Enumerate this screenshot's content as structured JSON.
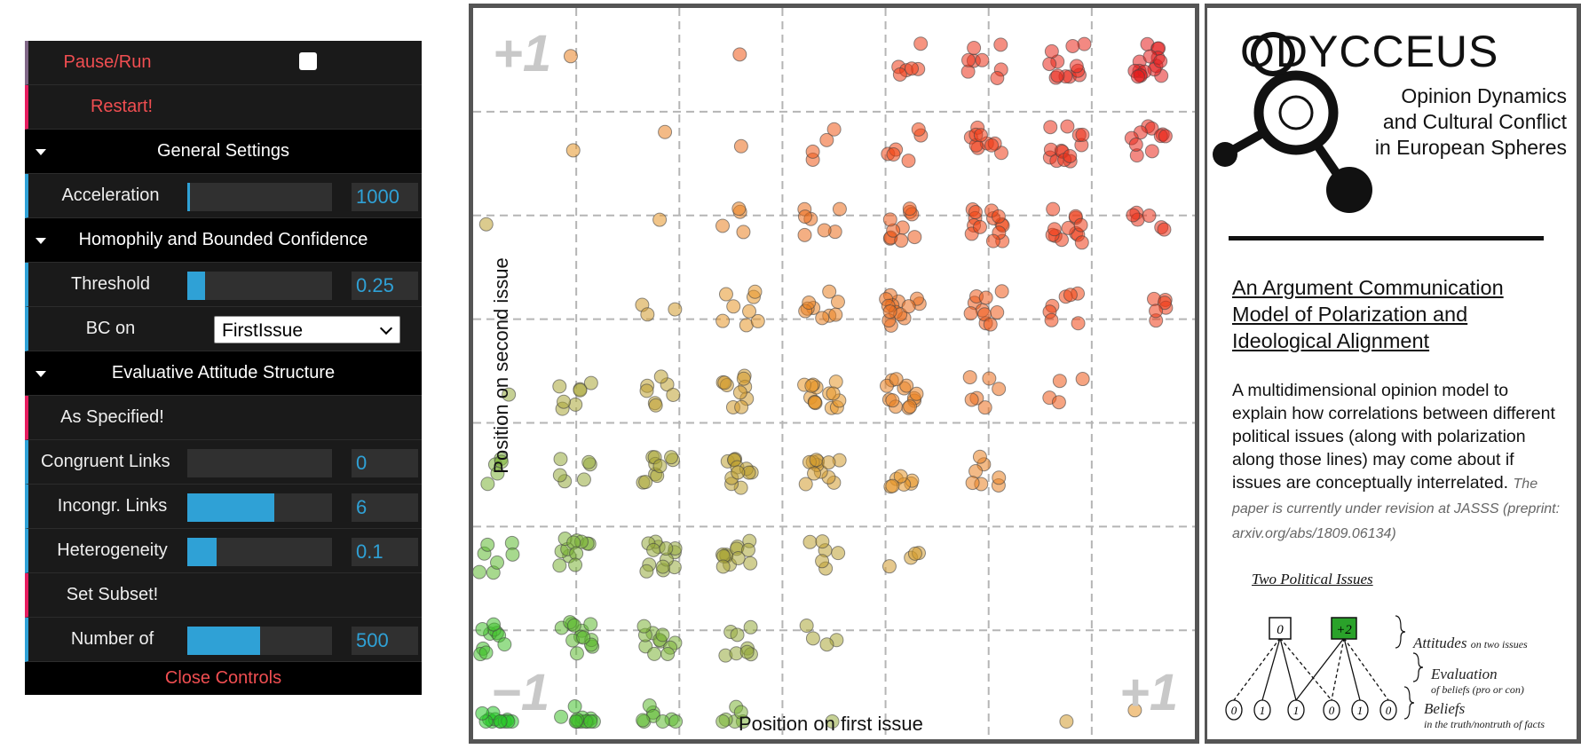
{
  "controls": {
    "pause_run": "Pause/Run",
    "restart": "Restart!",
    "general_settings": "General Settings",
    "acceleration": {
      "label": "Acceleration",
      "value": "1000",
      "fill_fraction": 0.01
    },
    "homophily": "Homophily and Bounded Confidence",
    "threshold": {
      "label": "Threshold",
      "value": "0.25",
      "fill_fraction": 0.12
    },
    "bc_on": {
      "label": "BC on",
      "selected": "FirstIssue"
    },
    "evaluative": "Evaluative Attitude Structure",
    "as_specified": "As Specified!",
    "congruent": {
      "label": "Congruent Links",
      "value": "0",
      "fill_fraction": 0.0
    },
    "incongruent": {
      "label": "Incongr. Links",
      "value": "6",
      "fill_fraction": 0.6
    },
    "heterogeneity": {
      "label": "Heterogeneity",
      "value": "0.1",
      "fill_fraction": 0.2
    },
    "set_subset": "Set Subset!",
    "number_of": {
      "label": "Number of",
      "value": "500",
      "fill_fraction": 0.5
    },
    "close": "Close Controls",
    "colors": {
      "accent_blue": "#2fa1d6",
      "button_red": "#f04e51",
      "panel_bg": "#1a1a1a"
    }
  },
  "plot": {
    "x_title": "Position on first issue",
    "y_title": "Position on second issue",
    "corner_top_left": "+1",
    "corner_bottom_left": "−1",
    "corner_bottom_right": "+1"
  },
  "info": {
    "logo": "ODYCCEUS",
    "subtitle_lines": [
      "Opinion Dynamics",
      "and Cultural Conflict",
      "in European Spheres"
    ],
    "paper_title": "An Argument Communication Model of Polarization and Ideological Alignment",
    "abstract": "A multidimensional opinion model to explain how correlations between different political issues (along with polarization along those lines) may come about if issues are conceptually interrelated.",
    "abstract_note": "The paper is currently under revision at JASSS (preprint: arxiv.org/abs/1809.06134)",
    "diagram": {
      "title": "Two Political Issues",
      "attitudes": [
        "0",
        "+2"
      ],
      "beliefs": [
        "0",
        "1",
        "1",
        "0",
        "1",
        "0"
      ],
      "label_attitudes": "Attitudes",
      "label_attitudes_sub": "on two issues",
      "label_evaluation": "Evaluation",
      "label_evaluation_sub": "of beliefs (pro or con)",
      "label_beliefs": "Beliefs",
      "label_beliefs_sub": "in the truth/nontruth of facts"
    }
  }
}
